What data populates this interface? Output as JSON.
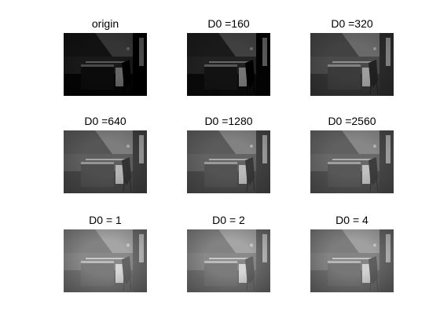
{
  "figure": {
    "panels": [
      {
        "title": "origin",
        "brightness": 0.18,
        "contrast": 0.55,
        "vignette": 0.25
      },
      {
        "title": "D0 =160",
        "brightness": 0.22,
        "contrast": 0.6,
        "vignette": 0.2
      },
      {
        "title": "D0 =320",
        "brightness": 0.38,
        "contrast": 0.6,
        "vignette": 0.2
      },
      {
        "title": "D0 =640",
        "brightness": 0.46,
        "contrast": 0.62,
        "vignette": 0.22
      },
      {
        "title": "D0 =1280",
        "brightness": 0.48,
        "contrast": 0.62,
        "vignette": 0.22
      },
      {
        "title": "D0 =2560",
        "brightness": 0.5,
        "contrast": 0.62,
        "vignette": 0.22
      },
      {
        "title": "D0 = 1",
        "brightness": 0.62,
        "contrast": 0.55,
        "vignette": 0.3
      },
      {
        "title": "D0 = 2",
        "brightness": 0.62,
        "contrast": 0.55,
        "vignette": 0.3
      },
      {
        "title": "D0 = 4",
        "brightness": 0.6,
        "contrast": 0.55,
        "vignette": 0.3
      }
    ]
  }
}
